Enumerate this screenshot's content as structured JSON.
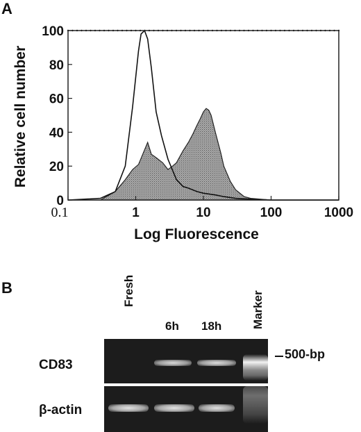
{
  "panel_a": {
    "letter": "A",
    "chart_data": {
      "type": "area",
      "xlabel": "Log Fluorescence",
      "ylabel": "Relative cell number",
      "xscale": "log",
      "xlim": [
        0.1,
        1000
      ],
      "ylim": [
        0,
        100
      ],
      "xticks": [
        "0.1",
        "1",
        "10",
        "100",
        "1000"
      ],
      "yticks": [
        "0",
        "20",
        "40",
        "60",
        "80",
        "100"
      ],
      "series": [
        {
          "style": "open line",
          "color": "#111111",
          "x": [
            0.1,
            0.3,
            0.5,
            0.7,
            0.9,
            1.1,
            1.2,
            1.35,
            1.5,
            1.7,
            2.0,
            2.4,
            3.0,
            4.0,
            5.0,
            6.0,
            8.0,
            10,
            15,
            20,
            30,
            50,
            100,
            1000
          ],
          "y": [
            0,
            1,
            5,
            20,
            55,
            88,
            98,
            100,
            95,
            78,
            52,
            38,
            24,
            12,
            8,
            7,
            5,
            4,
            3,
            2,
            1,
            0.5,
            0,
            0
          ]
        },
        {
          "style": "filled stippled",
          "color": "#9a9a9a",
          "x": [
            0.1,
            0.3,
            0.5,
            0.7,
            0.9,
            1.1,
            1.3,
            1.5,
            1.7,
            2.0,
            2.5,
            3.0,
            3.5,
            4.0,
            5.0,
            6.0,
            7.0,
            8.0,
            9.0,
            10,
            11,
            12,
            13,
            15,
            18,
            20,
            25,
            30,
            40,
            50,
            100,
            1000
          ],
          "y": [
            0,
            0,
            5,
            12,
            18,
            21,
            28,
            34,
            27,
            25,
            22,
            18,
            20,
            22,
            29,
            34,
            39,
            44,
            48,
            52,
            54,
            53,
            50,
            40,
            28,
            20,
            11,
            6,
            2,
            1,
            0,
            0
          ]
        }
      ]
    }
  },
  "panel_b": {
    "letter": "B",
    "lanes": [
      "Fresh",
      "6h",
      "18h",
      "Marker"
    ],
    "rows": [
      "CD83",
      "β-actin"
    ],
    "marker_label": "500-bp"
  }
}
